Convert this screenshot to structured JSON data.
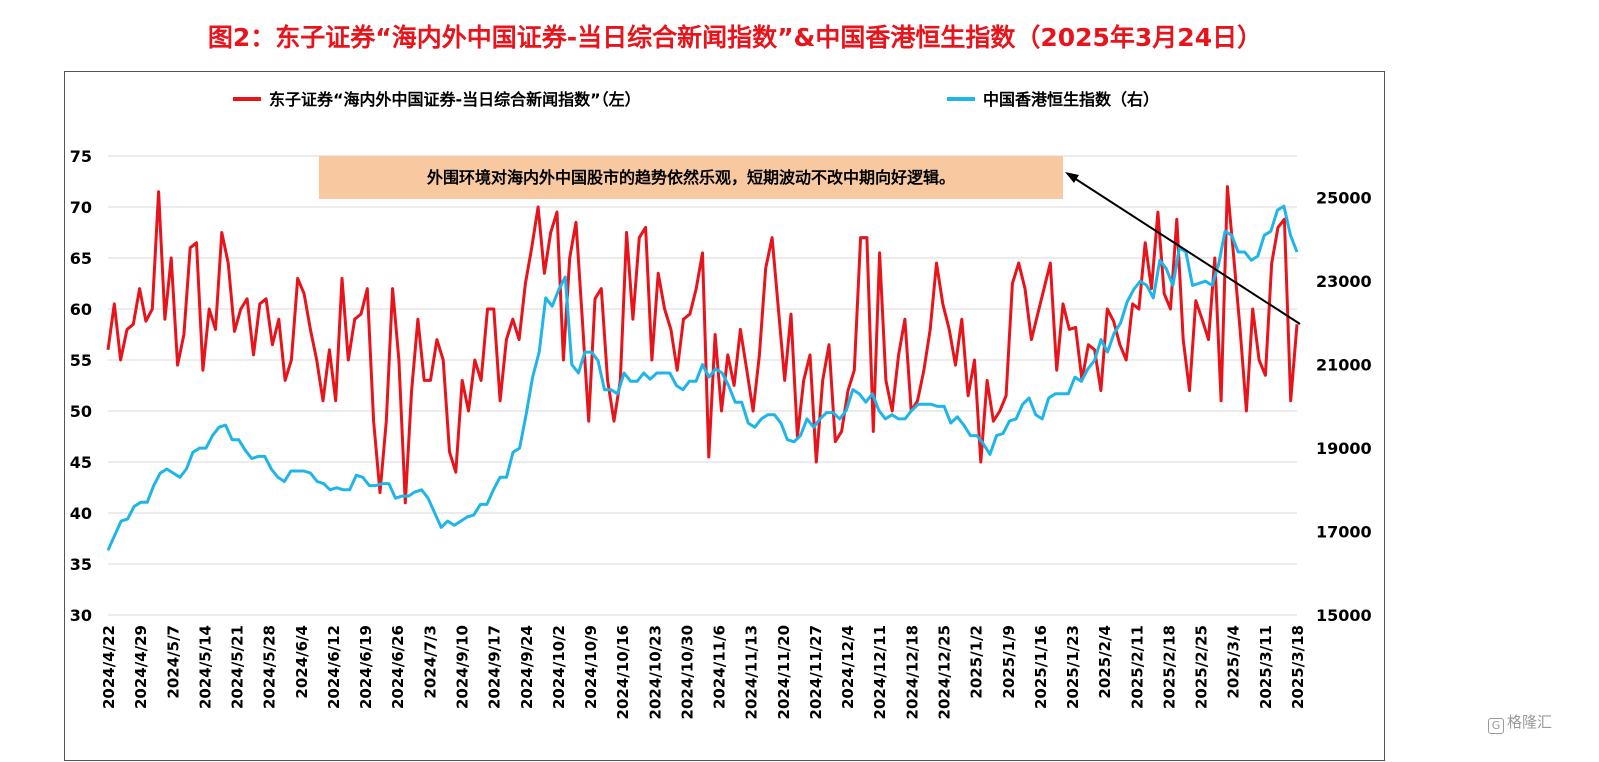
{
  "title": "图2：东子证券“海内外中国证券-当日综合新闻指数”&中国香港恒生指数（2025年3月24日）",
  "watermark": "格隆汇",
  "chart_data": {
    "type": "line",
    "grid": true,
    "legend_placement": "top",
    "annotation": "外围环境对海内外中国股市的趋势依然乐观，短期波动不改中期向好逻辑。",
    "left_axis": {
      "ylim": [
        30,
        75
      ],
      "ticks": [
        "30",
        "35",
        "40",
        "45",
        "50",
        "55",
        "60",
        "65",
        "70",
        "75"
      ]
    },
    "right_axis": {
      "ylim": [
        15000,
        26000
      ],
      "ticks": [
        "15000",
        "17000",
        "19000",
        "21000",
        "23000",
        "25000"
      ]
    },
    "x_tick_labels": [
      "2024/4/22",
      "2024/4/29",
      "2024/5/7",
      "2024/5/14",
      "2024/5/21",
      "2024/5/28",
      "2024/6/4",
      "2024/6/12",
      "2024/6/19",
      "2024/6/26",
      "2024/7/3",
      "2024/9/10",
      "2024/9/17",
      "2024/9/24",
      "2024/10/2",
      "2024/10/9",
      "2024/10/16",
      "2024/10/23",
      "2024/10/30",
      "2024/11/6",
      "2024/11/13",
      "2024/11/20",
      "2024/11/27",
      "2024/12/4",
      "2024/12/11",
      "2024/12/18",
      "2024/12/25",
      "2025/1/2",
      "2025/1/9",
      "2025/1/16",
      "2025/1/23",
      "2025/2/4",
      "2025/2/11",
      "2025/2/18",
      "2025/2/25",
      "2025/3/4",
      "2025/3/11",
      "2025/3/18"
    ],
    "series": [
      {
        "name": "东子证券“海内外中国证券-当日综合新闻指数”（左）",
        "axis": "left",
        "color": "#e8141c",
        "values": [
          56,
          60.5,
          55,
          58,
          58.5,
          62,
          58.8,
          60,
          71.5,
          59,
          65,
          54.5,
          57.5,
          66,
          66.5,
          54,
          60,
          58,
          67.5,
          64.5,
          57.8,
          60,
          61,
          55.5,
          60.5,
          61,
          56.5,
          59,
          53,
          55,
          63,
          61.5,
          58,
          55,
          51,
          56,
          51,
          63,
          55,
          59,
          59.5,
          62,
          49,
          42,
          49,
          62,
          55,
          41,
          52,
          59,
          53,
          53,
          57,
          55,
          46,
          44,
          53,
          50,
          55,
          53,
          60,
          60,
          51,
          57,
          59,
          57,
          62.5,
          66,
          70,
          63.5,
          67.5,
          69.5,
          55,
          65,
          68.5,
          59,
          49,
          61,
          62,
          53,
          49,
          53,
          67.5,
          59,
          67,
          68,
          55,
          63.5,
          60,
          58,
          54,
          59,
          59.5,
          62,
          65.5,
          45.5,
          57.5,
          50,
          55.5,
          52.5,
          58,
          54,
          50,
          55.5,
          64,
          67,
          60,
          53,
          59.5,
          47.5,
          53,
          55.5,
          45,
          53,
          56.5,
          47,
          48,
          52,
          54,
          67,
          67,
          48,
          65.5,
          53,
          50,
          55.5,
          59,
          50,
          51,
          54,
          58,
          64.5,
          60.5,
          58,
          54.5,
          59,
          51.5,
          55,
          45,
          53,
          49,
          50,
          51.5,
          62.5,
          64.5,
          62,
          57,
          59.5,
          62,
          64.5,
          54,
          60.5,
          58,
          58.2,
          53,
          56.5,
          56,
          52,
          60,
          58.8,
          56.5,
          55,
          60.5,
          60,
          66.5,
          62,
          69.5,
          61.5,
          60,
          68.8,
          57,
          52,
          60.8,
          59,
          57,
          65,
          51,
          72,
          65,
          58,
          50,
          60,
          55,
          53.5,
          64.5,
          68,
          68.8,
          51,
          58.5
        ]
      },
      {
        "name": "中国香港恒生指数（右）",
        "axis": "right",
        "color": "#1fb5e8",
        "values": [
          16550,
          16900,
          17250,
          17300,
          17600,
          17700,
          17700,
          18100,
          18400,
          18500,
          18400,
          18300,
          18500,
          18900,
          19000,
          19000,
          19300,
          19500,
          19550,
          19200,
          19200,
          18950,
          18750,
          18800,
          18800,
          18500,
          18300,
          18200,
          18450,
          18450,
          18450,
          18400,
          18200,
          18150,
          18000,
          18050,
          18000,
          18000,
          18350,
          18300,
          18100,
          18100,
          18150,
          18150,
          17800,
          17850,
          17850,
          17950,
          18000,
          17800,
          17450,
          17100,
          17250,
          17150,
          17250,
          17350,
          17400,
          17650,
          17650,
          18000,
          18300,
          18300,
          18900,
          19000,
          19800,
          20700,
          21300,
          22600,
          22400,
          22800,
          23100,
          21000,
          20800,
          21300,
          21300,
          21100,
          20400,
          20400,
          20300,
          20800,
          20600,
          20600,
          20800,
          20650,
          20800,
          20800,
          20800,
          20500,
          20400,
          20600,
          20600,
          21000,
          20700,
          20900,
          20800,
          20500,
          20100,
          20100,
          19600,
          19500,
          19700,
          19800,
          19800,
          19600,
          19200,
          19150,
          19300,
          19700,
          19500,
          19700,
          19850,
          19850,
          19700,
          19900,
          20400,
          20300,
          20100,
          20300,
          19900,
          19700,
          19800,
          19700,
          19700,
          19900,
          20050,
          20050,
          20050,
          20000,
          20000,
          19600,
          19750,
          19550,
          19300,
          19300,
          19100,
          18850,
          19300,
          19350,
          19650,
          19700,
          20050,
          20200,
          19800,
          19700,
          20200,
          20300,
          20300,
          20300,
          20700,
          20600,
          20900,
          21100,
          21600,
          21300,
          21750,
          22000,
          22500,
          22800,
          23000,
          22900,
          22600,
          23500,
          23300,
          22900,
          23800,
          23700,
          22900,
          22950,
          23000,
          22900,
          23400,
          24200,
          24100,
          23700,
          23700,
          23500,
          23600,
          24100,
          24200,
          24700,
          24800,
          24100,
          23700
        ]
      }
    ]
  }
}
